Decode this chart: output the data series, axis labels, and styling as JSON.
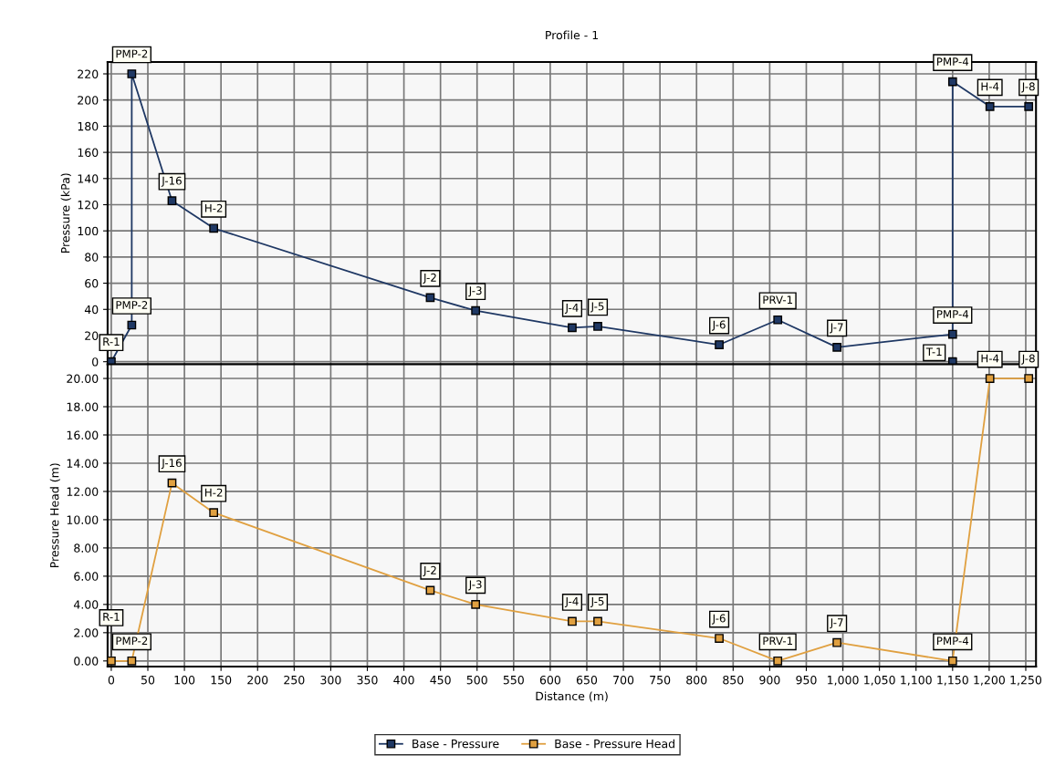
{
  "chart_data": [
    {
      "type": "line",
      "title": "Profile - 1",
      "ylabel": "Pressure (kPa)",
      "xlim": [
        -5,
        1264
      ],
      "xticks": [
        0,
        50,
        100,
        150,
        200,
        250,
        300,
        350,
        400,
        450,
        500,
        550,
        600,
        650,
        700,
        750,
        800,
        850,
        900,
        950,
        1000,
        1050,
        1100,
        1150,
        1200,
        1250
      ],
      "ylim": [
        -2,
        229
      ],
      "yticks": [
        0,
        20,
        40,
        60,
        80,
        100,
        120,
        140,
        160,
        180,
        200,
        220
      ],
      "tick_labels": "y",
      "grid": true,
      "legend": "bottom",
      "marker": "square",
      "series": [
        {
          "name": "Base - Pressure",
          "color": "#1f3864",
          "x": [
            0,
            28,
            28,
            83,
            140,
            436,
            498,
            630,
            665,
            831,
            911,
            992,
            1150,
            1150,
            1201,
            1254
          ],
          "values": [
            0,
            28,
            220,
            123,
            102,
            49,
            39,
            26,
            27,
            13,
            32,
            11,
            21,
            214,
            195,
            195
          ]
        },
        {
          "type": "scatter",
          "color": "#1f3864",
          "x": [
            1150
          ],
          "values": [
            0
          ]
        }
      ],
      "annotations": [
        {
          "text": "R-1",
          "x": 0,
          "y": 0
        },
        {
          "text": "PMP-2",
          "x": 28,
          "y": 28
        },
        {
          "text": "PMP-2",
          "x": 28,
          "y": 220
        },
        {
          "text": "J-16",
          "x": 83,
          "y": 123
        },
        {
          "text": "H-2",
          "x": 140,
          "y": 102
        },
        {
          "text": "J-2",
          "x": 436,
          "y": 49
        },
        {
          "text": "J-3",
          "x": 498,
          "y": 39
        },
        {
          "text": "J-4",
          "x": 630,
          "y": 26
        },
        {
          "text": "J-5",
          "x": 665,
          "y": 27
        },
        {
          "text": "J-6",
          "x": 831,
          "y": 13
        },
        {
          "text": "PRV-1",
          "x": 911,
          "y": 32
        },
        {
          "text": "J-7",
          "x": 992,
          "y": 11
        },
        {
          "text": "PMP-4",
          "x": 1150,
          "y": 21
        },
        {
          "text": "T-1",
          "x": 1150,
          "y": 0
        },
        {
          "text": "PMP-4",
          "x": 1150,
          "y": 214
        },
        {
          "text": "H-4",
          "x": 1201,
          "y": 195
        },
        {
          "text": "J-8",
          "x": 1254,
          "y": 195
        }
      ]
    },
    {
      "type": "line",
      "xlabel": "Distance (m)",
      "ylabel": "Pressure Head (m)",
      "xlim": [
        -5,
        1264
      ],
      "xticks": [
        0,
        50,
        100,
        150,
        200,
        250,
        300,
        350,
        400,
        450,
        500,
        550,
        600,
        650,
        700,
        750,
        800,
        850,
        900,
        950,
        {
          "value": 1000,
          "label": "1,000"
        },
        {
          "value": 1050,
          "label": "1,050"
        },
        {
          "value": 1100,
          "label": "1,100"
        },
        {
          "value": 1150,
          "label": "1,150"
        },
        {
          "value": 1200,
          "label": "1,200"
        },
        {
          "value": 1250,
          "label": "1,250"
        }
      ],
      "ylim": [
        -0.4,
        21
      ],
      "yticks": [
        {
          "value": 0,
          "label": "0.00"
        },
        {
          "value": 2,
          "label": "2.00"
        },
        {
          "value": 4,
          "label": "4.00"
        },
        {
          "value": 6,
          "label": "6.00"
        },
        {
          "value": 8,
          "label": "8.00"
        },
        {
          "value": 10,
          "label": "10.00"
        },
        {
          "value": 12,
          "label": "12.00"
        },
        {
          "value": 14,
          "label": "14.00"
        },
        {
          "value": 16,
          "label": "16.00"
        },
        {
          "value": 18,
          "label": "18.00"
        },
        {
          "value": 20,
          "label": "20.00"
        }
      ],
      "grid": true,
      "legend": "bottom",
      "marker": "square",
      "series": [
        {
          "name": "Base - Pressure Head",
          "color": "#e0a040",
          "x": [
            0,
            28,
            83,
            140,
            436,
            498,
            630,
            665,
            831,
            911,
            992,
            1150,
            1201,
            1254
          ],
          "values": [
            0,
            0,
            12.6,
            10.5,
            5.0,
            4.0,
            2.8,
            2.8,
            1.6,
            0,
            1.3,
            0,
            20,
            20
          ]
        }
      ],
      "annotations": [
        {
          "text": "R-1",
          "x": 0,
          "y": 0
        },
        {
          "text": "PMP-2",
          "x": 28,
          "y": 0
        },
        {
          "text": "J-16",
          "x": 83,
          "y": 12.6
        },
        {
          "text": "H-2",
          "x": 140,
          "y": 10.5
        },
        {
          "text": "J-2",
          "x": 436,
          "y": 5.0
        },
        {
          "text": "J-3",
          "x": 498,
          "y": 4.0
        },
        {
          "text": "J-4",
          "x": 630,
          "y": 2.8
        },
        {
          "text": "J-5",
          "x": 665,
          "y": 2.8
        },
        {
          "text": "J-6",
          "x": 831,
          "y": 1.6
        },
        {
          "text": "PRV-1",
          "x": 911,
          "y": 0
        },
        {
          "text": "J-7",
          "x": 992,
          "y": 1.3
        },
        {
          "text": "PMP-4",
          "x": 1150,
          "y": 0
        },
        {
          "text": "H-4",
          "x": 1201,
          "y": 20
        },
        {
          "text": "J-8",
          "x": 1254,
          "y": 20
        }
      ]
    }
  ]
}
